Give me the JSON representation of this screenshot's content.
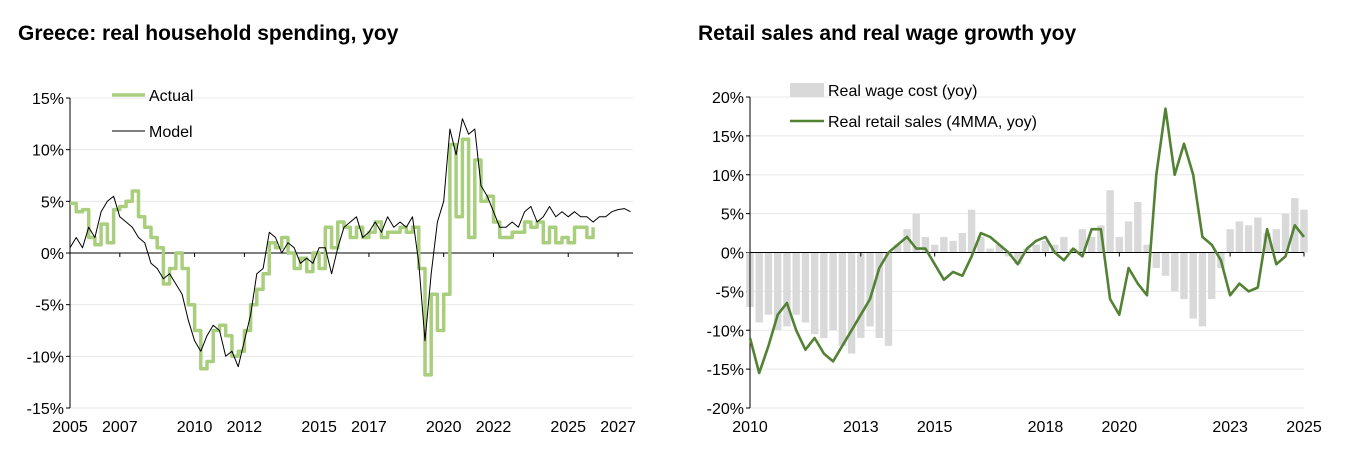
{
  "colors": {
    "actual": "#a9cf7e",
    "model": "#000000",
    "wage_bar": "#d9d9d9",
    "retail": "#548235",
    "grid": "#e8e8e8",
    "axis": "#000000"
  },
  "chart_data": [
    {
      "id": "left",
      "type": "line",
      "title": "Greece: real household spending, yoy",
      "xlabel": "",
      "ylabel": "",
      "xlim": [
        2005,
        2027.6
      ],
      "ylim": [
        -15,
        15
      ],
      "yticks": [
        15,
        10,
        5,
        0,
        -5,
        -10,
        -15
      ],
      "ytick_labels": [
        "15%",
        "10%",
        "5%",
        "0%",
        "-5%",
        "-10%",
        "-15%"
      ],
      "xticks": [
        2005,
        2007,
        2010,
        2012,
        2015,
        2017,
        2020,
        2022,
        2025,
        2027
      ],
      "xtick_labels": [
        "2005",
        "2007",
        "2010",
        "2012",
        "2015",
        "2017",
        "2020",
        "2022",
        "2025",
        "2027"
      ],
      "legend": {
        "position": "top-left",
        "entries": [
          "Actual",
          "Model"
        ]
      },
      "series": [
        {
          "name": "Actual",
          "style": "step",
          "x": [
            2005.0,
            2005.25,
            2005.5,
            2005.75,
            2006.0,
            2006.25,
            2006.5,
            2006.75,
            2007.0,
            2007.25,
            2007.5,
            2007.75,
            2008.0,
            2008.25,
            2008.5,
            2008.75,
            2009.0,
            2009.25,
            2009.5,
            2009.75,
            2010.0,
            2010.25,
            2010.5,
            2010.75,
            2011.0,
            2011.25,
            2011.5,
            2011.75,
            2012.0,
            2012.25,
            2012.5,
            2012.75,
            2013.0,
            2013.25,
            2013.5,
            2013.75,
            2014.0,
            2014.25,
            2014.5,
            2014.75,
            2015.0,
            2015.25,
            2015.5,
            2015.75,
            2016.0,
            2016.25,
            2016.5,
            2016.75,
            2017.0,
            2017.25,
            2017.5,
            2017.75,
            2018.0,
            2018.25,
            2018.5,
            2018.75,
            2019.0,
            2019.25,
            2019.5,
            2019.75,
            2020.0,
            2020.25,
            2020.5,
            2020.75,
            2021.0,
            2021.25,
            2021.5,
            2021.75,
            2022.0,
            2022.25,
            2022.5,
            2022.75,
            2023.0,
            2023.25,
            2023.5,
            2023.75,
            2024.0,
            2024.25,
            2024.5,
            2024.75,
            2025.0,
            2025.25,
            2025.5,
            2025.75,
            2026.0
          ],
          "values": [
            4.8,
            4.0,
            4.2,
            1.5,
            0.8,
            2.8,
            1.0,
            4.2,
            4.5,
            5.0,
            6.0,
            3.5,
            2.5,
            1.5,
            0.5,
            -3.0,
            -1.5,
            0.0,
            -1.5,
            -5.0,
            -7.5,
            -11.2,
            -10.5,
            -7.5,
            -7.0,
            -8.0,
            -10.0,
            -9.5,
            -7.5,
            -5.0,
            -3.5,
            -2.0,
            1.0,
            0.5,
            1.5,
            0.0,
            -1.5,
            -0.5,
            -1.8,
            0.0,
            -1.5,
            2.5,
            0.5,
            3.0,
            2.5,
            1.5,
            2.5,
            1.5,
            2.0,
            3.0,
            1.5,
            2.0,
            2.0,
            2.5,
            2.0,
            2.5,
            -1.5,
            -11.8,
            -4.0,
            -7.5,
            -4.0,
            10.5,
            3.5,
            11.0,
            1.5,
            9.0,
            5.0,
            5.5,
            3.0,
            1.5,
            1.5,
            2.0,
            2.0,
            3.0,
            2.5,
            3.0,
            1.0,
            2.5,
            1.0,
            1.5,
            1.0,
            2.5,
            2.5,
            1.5,
            2.5
          ]
        },
        {
          "name": "Model",
          "style": "line",
          "x": [
            2005.0,
            2005.25,
            2005.5,
            2005.75,
            2006.0,
            2006.25,
            2006.5,
            2006.75,
            2007.0,
            2007.25,
            2007.5,
            2007.75,
            2008.0,
            2008.25,
            2008.5,
            2008.75,
            2009.0,
            2009.25,
            2009.5,
            2009.75,
            2010.0,
            2010.25,
            2010.5,
            2010.75,
            2011.0,
            2011.25,
            2011.5,
            2011.75,
            2012.0,
            2012.25,
            2012.5,
            2012.75,
            2013.0,
            2013.25,
            2013.5,
            2013.75,
            2014.0,
            2014.25,
            2014.5,
            2014.75,
            2015.0,
            2015.25,
            2015.5,
            2015.75,
            2016.0,
            2016.25,
            2016.5,
            2016.75,
            2017.0,
            2017.25,
            2017.5,
            2017.75,
            2018.0,
            2018.25,
            2018.5,
            2018.75,
            2019.0,
            2019.25,
            2019.5,
            2019.75,
            2020.0,
            2020.25,
            2020.5,
            2020.75,
            2021.0,
            2021.25,
            2021.5,
            2021.75,
            2022.0,
            2022.25,
            2022.5,
            2022.75,
            2023.0,
            2023.25,
            2023.5,
            2023.75,
            2024.0,
            2024.25,
            2024.5,
            2024.75,
            2025.0,
            2025.25,
            2025.5,
            2025.75,
            2026.0,
            2026.25,
            2026.5,
            2026.75,
            2027.0,
            2027.25,
            2027.5
          ],
          "values": [
            0.5,
            1.5,
            0.5,
            2.5,
            1.5,
            4.0,
            5.0,
            5.5,
            3.5,
            3.0,
            2.5,
            1.5,
            1.0,
            -1.0,
            -1.5,
            -2.5,
            -2.0,
            -3.0,
            -4.0,
            -6.5,
            -8.5,
            -9.5,
            -8.0,
            -7.0,
            -7.5,
            -10.0,
            -9.5,
            -11.0,
            -8.5,
            -6.0,
            -2.0,
            -1.5,
            2.0,
            1.5,
            0.0,
            1.0,
            0.5,
            -1.0,
            -0.5,
            -1.0,
            0.5,
            0.5,
            -2.0,
            0.5,
            2.5,
            3.0,
            3.5,
            1.5,
            2.0,
            3.0,
            2.0,
            3.5,
            2.5,
            3.0,
            2.5,
            3.5,
            -1.0,
            -8.5,
            -2.0,
            3.0,
            5.0,
            12.0,
            9.5,
            13.0,
            11.5,
            12.0,
            6.5,
            5.5,
            4.0,
            2.5,
            2.5,
            3.0,
            2.5,
            4.0,
            4.5,
            3.0,
            3.5,
            4.5,
            3.5,
            4.0,
            3.5,
            4.0,
            3.5,
            3.5,
            3.0,
            3.5,
            3.5,
            4.0,
            4.2,
            4.3,
            4.0
          ]
        }
      ]
    },
    {
      "id": "right",
      "type": "bar",
      "title": "Retail sales and real wage growth yoy",
      "xlabel": "",
      "ylabel": "",
      "xlim": [
        2010,
        2025
      ],
      "ylim": [
        -20,
        20
      ],
      "yticks": [
        20,
        15,
        10,
        5,
        0,
        -5,
        -10,
        -15,
        -20
      ],
      "ytick_labels": [
        "20%",
        "15%",
        "10%",
        "5%",
        "0%",
        "-5%",
        "-10%",
        "-15%",
        "-20%"
      ],
      "xticks": [
        2010,
        2013,
        2015,
        2018,
        2020,
        2023,
        2025
      ],
      "xtick_labels": [
        "2010",
        "2013",
        "2015",
        "2018",
        "2020",
        "2023",
        "2025"
      ],
      "legend": {
        "position": "top-left",
        "entries": [
          "Real wage cost (yoy)",
          "Real retail sales (4MMA, yoy)"
        ]
      },
      "series": [
        {
          "name": "Real wage cost (yoy)",
          "style": "bar",
          "x": [
            2010.0,
            2010.25,
            2010.5,
            2010.75,
            2011.0,
            2011.25,
            2011.5,
            2011.75,
            2012.0,
            2012.25,
            2012.5,
            2012.75,
            2013.0,
            2013.25,
            2013.5,
            2013.75,
            2014.0,
            2014.25,
            2014.5,
            2014.75,
            2015.0,
            2015.25,
            2015.5,
            2015.75,
            2016.0,
            2016.25,
            2016.5,
            2016.75,
            2017.0,
            2017.25,
            2017.5,
            2017.75,
            2018.0,
            2018.25,
            2018.5,
            2018.75,
            2019.0,
            2019.25,
            2019.5,
            2019.75,
            2020.0,
            2020.25,
            2020.5,
            2020.75,
            2021.0,
            2021.25,
            2021.5,
            2021.75,
            2022.0,
            2022.25,
            2022.5,
            2022.75,
            2023.0,
            2023.25,
            2023.5,
            2023.75,
            2024.0,
            2024.25,
            2024.5,
            2024.75,
            2025.0
          ],
          "values": [
            -7.0,
            -9.0,
            -8.0,
            -10.0,
            -9.5,
            -8.0,
            -9.0,
            -10.5,
            -11.0,
            -10.0,
            -12.0,
            -13.0,
            -11.0,
            -9.5,
            -11.0,
            -12.0,
            1.0,
            3.0,
            5.0,
            2.0,
            1.0,
            2.0,
            1.5,
            2.5,
            5.5,
            2.0,
            0.5,
            1.0,
            -0.5,
            -1.5,
            0.5,
            1.0,
            1.5,
            1.0,
            2.0,
            0.5,
            3.0,
            2.0,
            3.5,
            8.0,
            2.0,
            4.0,
            6.5,
            1.0,
            -2.0,
            -3.0,
            -5.0,
            -6.0,
            -8.5,
            -9.5,
            -6.0,
            -2.0,
            3.0,
            4.0,
            3.5,
            4.5,
            2.5,
            3.0,
            5.0,
            7.0,
            5.5
          ]
        },
        {
          "name": "Real retail sales (4MMA, yoy)",
          "style": "line",
          "x": [
            2010.0,
            2010.25,
            2010.5,
            2010.75,
            2011.0,
            2011.25,
            2011.5,
            2011.75,
            2012.0,
            2012.25,
            2012.5,
            2012.75,
            2013.0,
            2013.25,
            2013.5,
            2013.75,
            2014.0,
            2014.25,
            2014.5,
            2014.75,
            2015.0,
            2015.25,
            2015.5,
            2015.75,
            2016.0,
            2016.25,
            2016.5,
            2016.75,
            2017.0,
            2017.25,
            2017.5,
            2017.75,
            2018.0,
            2018.25,
            2018.5,
            2018.75,
            2019.0,
            2019.25,
            2019.5,
            2019.75,
            2020.0,
            2020.25,
            2020.5,
            2020.75,
            2021.0,
            2021.25,
            2021.5,
            2021.75,
            2022.0,
            2022.25,
            2022.5,
            2022.75,
            2023.0,
            2023.25,
            2023.5,
            2023.75,
            2024.0,
            2024.25,
            2024.5,
            2024.75,
            2025.0
          ],
          "values": [
            -11.0,
            -15.5,
            -12.0,
            -8.0,
            -6.5,
            -10.0,
            -12.5,
            -11.0,
            -13.0,
            -14.0,
            -12.0,
            -10.0,
            -8.0,
            -6.0,
            -2.0,
            0.0,
            1.0,
            2.0,
            0.5,
            0.5,
            -1.5,
            -3.5,
            -2.5,
            -3.0,
            -0.5,
            2.5,
            2.0,
            1.0,
            0.0,
            -1.5,
            0.5,
            1.5,
            2.0,
            0.0,
            -1.0,
            0.5,
            -0.5,
            3.0,
            3.0,
            -6.0,
            -8.0,
            -2.0,
            -4.0,
            -5.5,
            10.0,
            18.5,
            10.0,
            14.0,
            10.0,
            2.0,
            1.0,
            -1.0,
            -5.5,
            -4.0,
            -5.0,
            -4.5,
            3.0,
            -1.5,
            -0.5,
            3.5,
            2.0
          ]
        }
      ]
    }
  ]
}
